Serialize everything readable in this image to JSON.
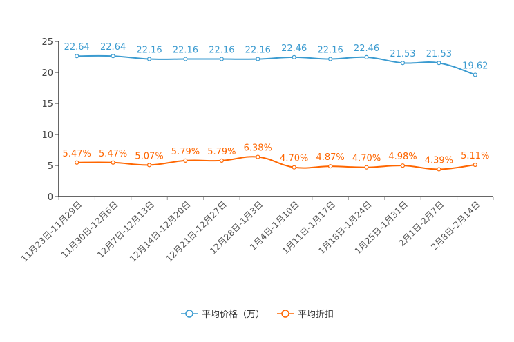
{
  "chart_data": {
    "type": "line",
    "title": "",
    "xlabel": "",
    "ylabel": "",
    "ylim": [
      0,
      25
    ],
    "yticks": [
      0,
      5,
      10,
      15,
      20,
      25
    ],
    "grid": false,
    "legend_position": "bottom-center",
    "categories": [
      "11月23日-11月29日",
      "11月30日-12月6日",
      "12月7日-12月13日",
      "12月14日-12月20日",
      "12月21日-12月27日",
      "12月28日-1月3日",
      "1月4日-1月10日",
      "1月11日-1月17日",
      "1月18日-1月24日",
      "1月25日-1月31日",
      "2月1日-2月7日",
      "2月8日-2月14日"
    ],
    "series": [
      {
        "name": "平均价格（万）",
        "color": "#3b9bd0",
        "values": [
          22.64,
          22.64,
          22.16,
          22.16,
          22.16,
          22.16,
          22.46,
          22.16,
          22.46,
          21.53,
          21.53,
          19.62
        ],
        "labels": [
          "22.64",
          "22.64",
          "22.16",
          "22.16",
          "22.16",
          "22.16",
          "22.46",
          "22.16",
          "22.46",
          "21.53",
          "21.53",
          "19.62"
        ]
      },
      {
        "name": "平均折扣",
        "color": "#ff6600",
        "values": [
          5.47,
          5.47,
          5.07,
          5.79,
          5.79,
          6.38,
          4.7,
          4.87,
          4.7,
          4.98,
          4.39,
          5.11
        ],
        "labels": [
          "5.47%",
          "5.47%",
          "5.07%",
          "5.79%",
          "5.79%",
          "6.38%",
          "4.70%",
          "4.87%",
          "4.70%",
          "4.98%",
          "4.39%",
          "5.11%"
        ]
      }
    ]
  }
}
